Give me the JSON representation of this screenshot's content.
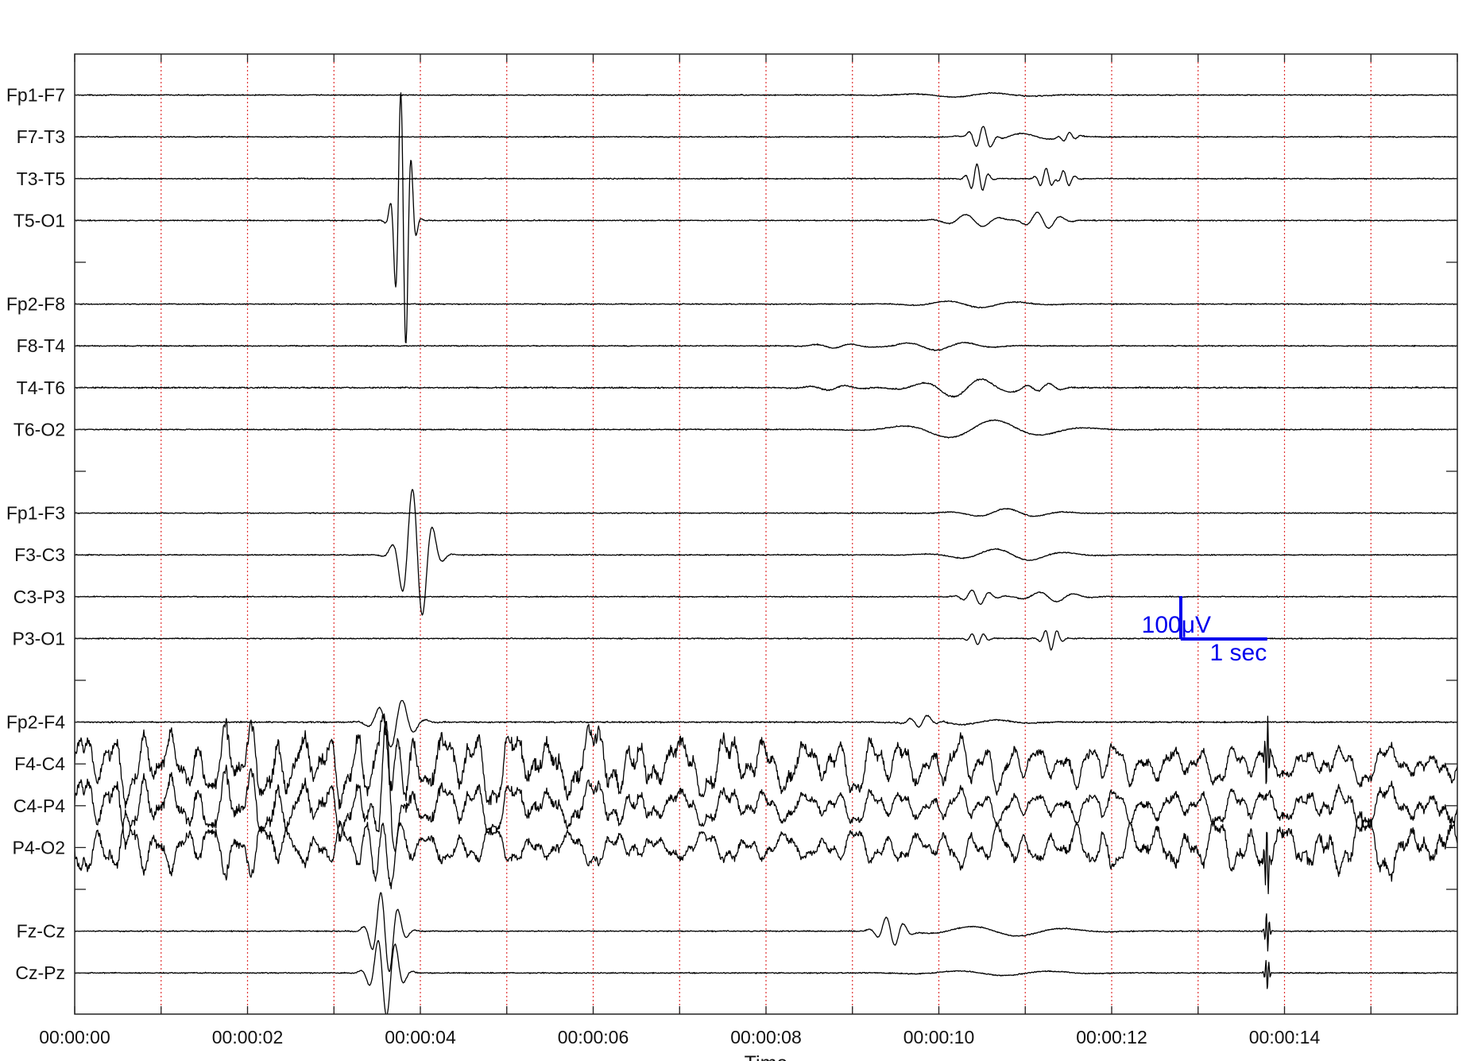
{
  "chart_data": {
    "type": "line",
    "xlabel": "Time",
    "xlim": [
      0,
      16
    ],
    "x_tick_values": [
      0,
      2,
      4,
      6,
      8,
      10,
      12,
      14
    ],
    "x_tick_labels": [
      "00:00:00",
      "00:00:02",
      "00:00:04",
      "00:00:06",
      "00:00:08",
      "00:00:10",
      "00:00:12",
      "00:00:14"
    ],
    "grid": "vertical dotted red lines at every 1 second",
    "grid_color": "#e03030",
    "trace_color": "#000000",
    "scale_bar": {
      "color": "#0000ee",
      "amplitude_label": "100μV",
      "time_label": "1 sec",
      "amplitude_uV": 100,
      "duration_s": 1,
      "t_start": 12.8
    },
    "channels": [
      {
        "name": "Fp1-F7",
        "slot": 1,
        "noise": 3,
        "events": [
          {
            "t": 10.4,
            "w": 1.4,
            "amp": 5
          }
        ]
      },
      {
        "name": "F7-T3",
        "slot": 2,
        "noise": 3,
        "events": [
          {
            "t": 10.5,
            "w": 0.25,
            "amp": 28
          },
          {
            "t": 10.9,
            "w": 1.0,
            "amp": 8
          },
          {
            "t": 11.5,
            "w": 0.2,
            "amp": 10
          }
        ]
      },
      {
        "name": "T3-T5",
        "slot": 3,
        "noise": 3,
        "events": [
          {
            "t": 10.45,
            "w": 0.2,
            "amp": 34
          },
          {
            "t": 11.25,
            "w": 0.2,
            "amp": 25
          },
          {
            "t": 11.45,
            "w": 0.2,
            "amp": 20
          }
        ]
      },
      {
        "name": "T5-O1",
        "slot": 4,
        "noise": 3,
        "events": [
          {
            "t": 3.8,
            "w": 0.18,
            "amp": 320
          },
          {
            "t": 10.4,
            "w": 0.6,
            "amp": 15
          },
          {
            "t": 11.2,
            "w": 0.4,
            "amp": 20
          }
        ]
      },
      {
        "name": "Fp2-F8",
        "slot": 6,
        "noise": 3,
        "events": [
          {
            "t": 10.4,
            "w": 1.2,
            "amp": 8
          }
        ]
      },
      {
        "name": "F8-T4",
        "slot": 7,
        "noise": 3,
        "events": [
          {
            "t": 8.8,
            "w": 0.6,
            "amp": 5
          },
          {
            "t": 10.0,
            "w": 1.0,
            "amp": 10
          }
        ]
      },
      {
        "name": "T4-T6",
        "slot": 8,
        "noise": 4,
        "events": [
          {
            "t": 8.8,
            "w": 0.6,
            "amp": 6
          },
          {
            "t": 10.3,
            "w": 1.0,
            "amp": 22
          },
          {
            "t": 11.2,
            "w": 0.4,
            "amp": 10
          }
        ]
      },
      {
        "name": "T6-O2",
        "slot": 9,
        "noise": 3,
        "events": [
          {
            "t": 10.5,
            "w": 1.6,
            "amp": 22
          }
        ]
      },
      {
        "name": "Fp1-F3",
        "slot": 11,
        "noise": 3,
        "events": [
          {
            "t": 10.8,
            "w": 1.0,
            "amp": 10
          }
        ]
      },
      {
        "name": "F3-C3",
        "slot": 12,
        "noise": 3,
        "events": [
          {
            "t": 3.95,
            "w": 0.35,
            "amp": 160
          },
          {
            "t": 10.8,
            "w": 1.2,
            "amp": 14
          }
        ]
      },
      {
        "name": "C3-P3",
        "slot": 13,
        "noise": 3,
        "events": [
          {
            "t": 10.45,
            "w": 0.3,
            "amp": 18
          },
          {
            "t": 11.3,
            "w": 0.6,
            "amp": 12
          }
        ]
      },
      {
        "name": "P3-O1",
        "slot": 14,
        "noise": 3,
        "events": [
          {
            "t": 10.45,
            "w": 0.2,
            "amp": 14
          },
          {
            "t": 11.3,
            "w": 0.2,
            "amp": 26
          }
        ]
      },
      {
        "name": "Fp2-F4",
        "slot": 16,
        "noise": 4,
        "events": [
          {
            "t": 3.7,
            "w": 0.4,
            "amp": 60
          },
          {
            "t": 9.8,
            "w": 0.3,
            "amp": 14
          },
          {
            "t": 10.4,
            "w": 1.2,
            "amp": 6
          }
        ]
      },
      {
        "name": "F4-C4",
        "slot": 17,
        "noise": 4,
        "burst": true,
        "amp": 70,
        "sign": 1,
        "events": [
          {
            "t": 3.7,
            "w": 0.3,
            "amp": 90
          },
          {
            "t": 13.8,
            "w": 0.05,
            "amp": 90
          }
        ]
      },
      {
        "name": "C4-P4",
        "slot": 18,
        "noise": 4,
        "burst": true,
        "amp": 60,
        "sign": 1,
        "events": [
          {
            "t": 3.6,
            "w": 0.3,
            "amp": 110
          }
        ]
      },
      {
        "name": "P4-O2",
        "slot": 19,
        "noise": 4,
        "burst": true,
        "amp": 60,
        "sign": -1,
        "events": [
          {
            "t": 3.6,
            "w": 0.3,
            "amp": 110
          },
          {
            "t": 13.8,
            "w": 0.05,
            "amp": 90
          }
        ]
      },
      {
        "name": "Fz-Cz",
        "slot": 21,
        "noise": 3,
        "events": [
          {
            "t": 3.6,
            "w": 0.3,
            "amp": 100
          },
          {
            "t": 9.45,
            "w": 0.3,
            "amp": 35
          },
          {
            "t": 10.7,
            "w": 1.6,
            "amp": 12
          },
          {
            "t": 13.8,
            "w": 0.05,
            "amp": 50
          }
        ]
      },
      {
        "name": "Cz-Pz",
        "slot": 22,
        "noise": 3,
        "events": [
          {
            "t": 3.6,
            "w": 0.3,
            "amp": 100
          },
          {
            "t": 10.7,
            "w": 1.6,
            "amp": 6
          },
          {
            "t": 13.8,
            "w": 0.05,
            "amp": 40
          }
        ]
      }
    ]
  }
}
